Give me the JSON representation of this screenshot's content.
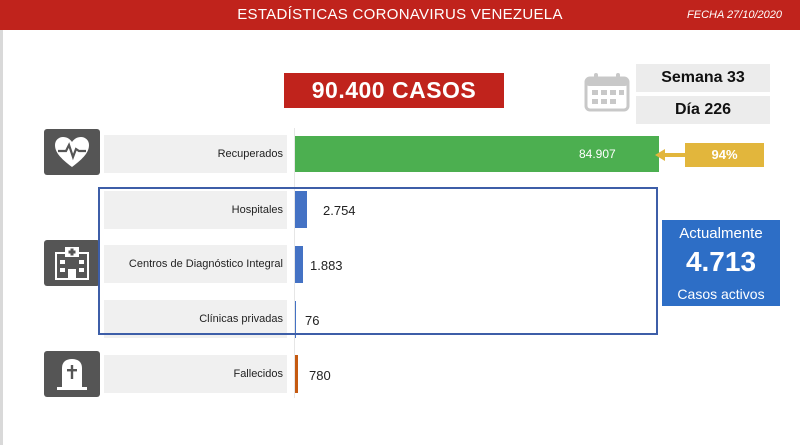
{
  "header": {
    "title": "ESTADÍSTICAS CORONAVIRUS VENEZUELA",
    "date": "FECHA 27/10/2020"
  },
  "summary": {
    "total_cases": "90.400 CASOS",
    "week": "Semana 33",
    "day": "Día 226",
    "recovered_pct": "94%",
    "active_title": "Actualmente",
    "active_value": "4.713",
    "active_subtitle": "Casos activos"
  },
  "icons": {
    "calendar": "calendar-icon",
    "recovered": "heart-pulse-icon",
    "hospital": "hospital-icon",
    "deceased": "tombstone-icon"
  },
  "colors": {
    "header": "#c0231c",
    "recovered": "#4caf50",
    "hospital": "#4472c4",
    "deceased": "#c55a11",
    "percent_badge": "#e2b63c",
    "active_box": "#2d6ec6"
  },
  "chart_data": {
    "type": "bar",
    "orientation": "horizontal",
    "categories": [
      "Recuperados",
      "Hospitales",
      "Centros de Diagnóstico Integral",
      "Clínicas privadas",
      "Fallecidos"
    ],
    "values": [
      84907,
      2754,
      1883,
      76,
      780
    ],
    "value_labels": [
      "84.907",
      "2.754",
      "1.883",
      "76",
      "780"
    ],
    "xlim": [
      0,
      84907
    ]
  }
}
